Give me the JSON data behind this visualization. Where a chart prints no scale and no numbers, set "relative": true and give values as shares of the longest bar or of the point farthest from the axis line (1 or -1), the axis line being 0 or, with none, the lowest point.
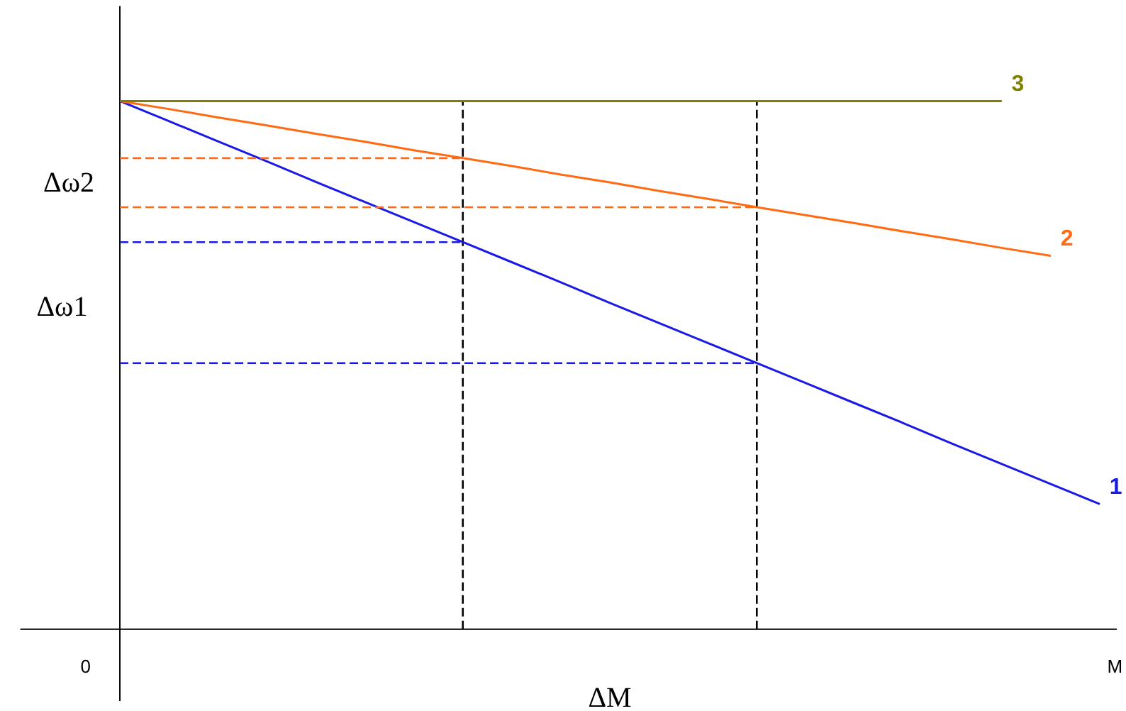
{
  "chart_data": {
    "type": "line",
    "relative": true,
    "xlabel": "M",
    "categories": [
      null,
      null,
      null,
      null,
      null,
      null,
      null,
      null,
      null,
      null,
      null,
      null,
      null,
      null,
      null,
      null,
      null,
      null,
      null,
      null,
      null
    ],
    "annotations": [
      "Δω2",
      "Δω1",
      "ΔM",
      "0"
    ],
    "series": [
      {
        "name": "1",
        "color": "#1a1ae6",
        "values": [
          1,
          0.962,
          0.924,
          0.886,
          0.847,
          0.809,
          0.771,
          0.733,
          0.695,
          0.657,
          0.618,
          0.58,
          0.542,
          0.504,
          0.466,
          0.428,
          0.39,
          0.351,
          0.313,
          0.275,
          0.237
        ]
      },
      {
        "name": "2",
        "color": "#ff6a13",
        "values": [
          1,
          0.985,
          0.969,
          0.954,
          0.938,
          0.923,
          0.907,
          0.892,
          0.877,
          0.861,
          0.846,
          0.83,
          0.815,
          0.799,
          0.784,
          0.769,
          0.753,
          0.738,
          0.722,
          0.707,
          null
        ]
      },
      {
        "name": "3",
        "color": "#808000",
        "values": [
          1,
          1,
          1,
          1,
          1,
          1,
          1,
          1,
          1,
          1,
          1,
          1,
          1,
          1,
          1,
          1,
          1,
          1,
          1,
          null,
          null
        ]
      },
      {
        "color": "#1a1ae6",
        "line_style": "dashed",
        "values": [
          0.733,
          0.733,
          0.733,
          0.733,
          0.733,
          0.733,
          0.733,
          0.733,
          null,
          null,
          null,
          null,
          null,
          null,
          null,
          null,
          null,
          null,
          null,
          null,
          null
        ]
      },
      {
        "color": "#1a1ae6",
        "line_style": "dashed",
        "values": [
          0.504,
          0.504,
          0.504,
          0.504,
          0.504,
          0.504,
          0.504,
          0.504,
          0.504,
          0.504,
          0.504,
          0.504,
          0.504,
          0.504,
          null,
          null,
          null,
          null,
          null,
          null,
          null
        ]
      },
      {
        "color": "#ff6a13",
        "line_style": "dashed",
        "values": [
          0.892,
          0.892,
          0.892,
          0.892,
          0.892,
          0.892,
          0.892,
          0.892,
          null,
          null,
          null,
          null,
          null,
          null,
          null,
          null,
          null,
          null,
          null,
          null,
          null
        ]
      },
      {
        "color": "#ff6a13",
        "line_style": "dashed",
        "values": [
          0.799,
          0.799,
          0.799,
          0.799,
          0.799,
          0.799,
          0.799,
          0.799,
          0.799,
          0.799,
          0.799,
          0.799,
          0.799,
          0.799,
          null,
          null,
          null,
          null,
          null,
          null,
          null
        ]
      }
    ]
  }
}
